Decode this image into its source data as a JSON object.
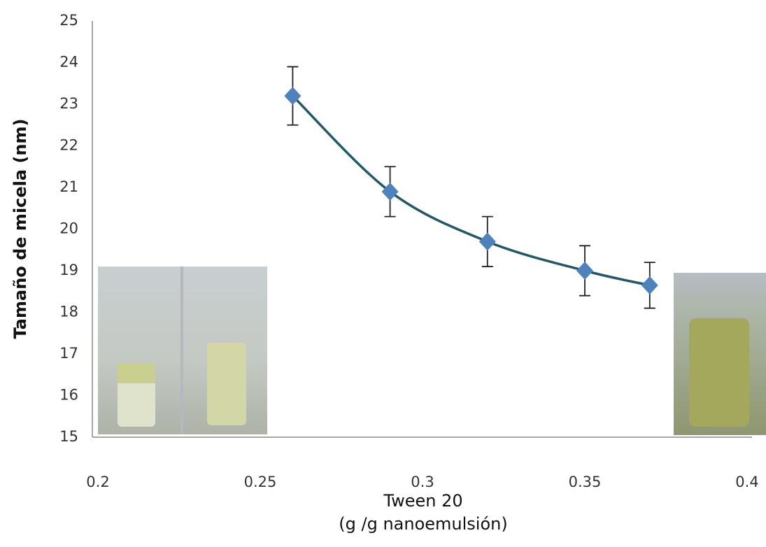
{
  "chart_data": {
    "type": "scatter",
    "x_label": [
      "Tween 20",
      "(g /g nanoemulsión)"
    ],
    "y_label": "Tamaño de micela (nm)",
    "series": [
      {
        "color": "#4f81bd",
        "trend_color": "#215968",
        "x": [
          0.26,
          0.29,
          0.32,
          0.35,
          0.37
        ],
        "values": [
          23.2,
          20.9,
          19.7,
          19.0,
          18.65
        ],
        "errors": [
          0.7,
          0.6,
          0.6,
          0.6,
          0.55
        ]
      }
    ],
    "xlim": [
      0.2,
      0.4
    ],
    "xticks": [
      0.2,
      0.25,
      0.3,
      0.35,
      0.4
    ],
    "ylim": [
      15,
      25
    ],
    "yticks": [
      15,
      16,
      17,
      18,
      19,
      20,
      21,
      22,
      23,
      24,
      25
    ],
    "grid": false
  }
}
